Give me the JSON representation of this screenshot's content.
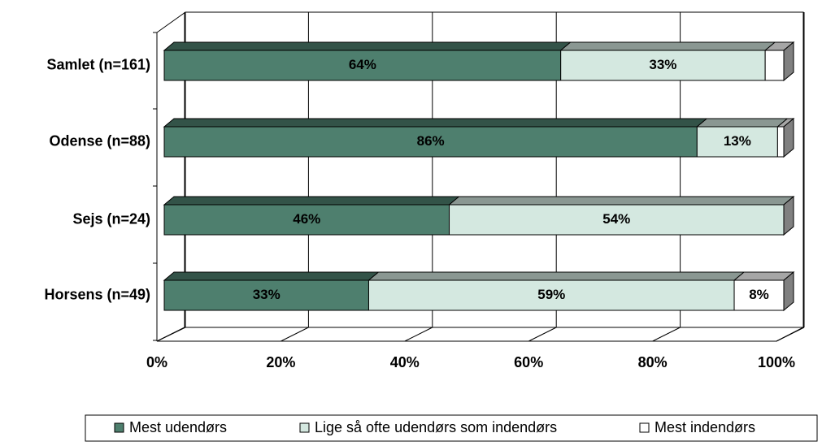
{
  "chart_data": {
    "type": "stacked_barh_3d",
    "categories": [
      "Samlet (n=161)",
      "Odense (n=88)",
      "Sejs (n=24)",
      "Horsens (n=49)"
    ],
    "series": [
      {
        "name": "Mest udendørs",
        "color": "#4e7f6e",
        "values": [
          64,
          86,
          46,
          33
        ],
        "value_labels": [
          "64%",
          "86%",
          "46%",
          "33%"
        ]
      },
      {
        "name": "Lige så ofte udendørs som indendørs",
        "color": "#d4e8e0",
        "values": [
          33,
          13,
          54,
          59
        ],
        "value_labels": [
          "33%",
          "13%",
          "54%",
          "59%"
        ]
      },
      {
        "name": "Mest indendørs",
        "color": "#ffffff",
        "values": [
          3,
          1,
          0,
          8
        ],
        "value_labels": [
          null,
          null,
          null,
          "8%"
        ]
      }
    ],
    "xlim": [
      0,
      100
    ],
    "xticks": [
      {
        "value": 0,
        "label": "0%"
      },
      {
        "value": 20,
        "label": "20%"
      },
      {
        "value": 40,
        "label": "40%"
      },
      {
        "value": 60,
        "label": "60%"
      },
      {
        "value": 80,
        "label": "80%"
      },
      {
        "value": 100,
        "label": "100%"
      }
    ],
    "grid": true,
    "legend": "bottom"
  }
}
